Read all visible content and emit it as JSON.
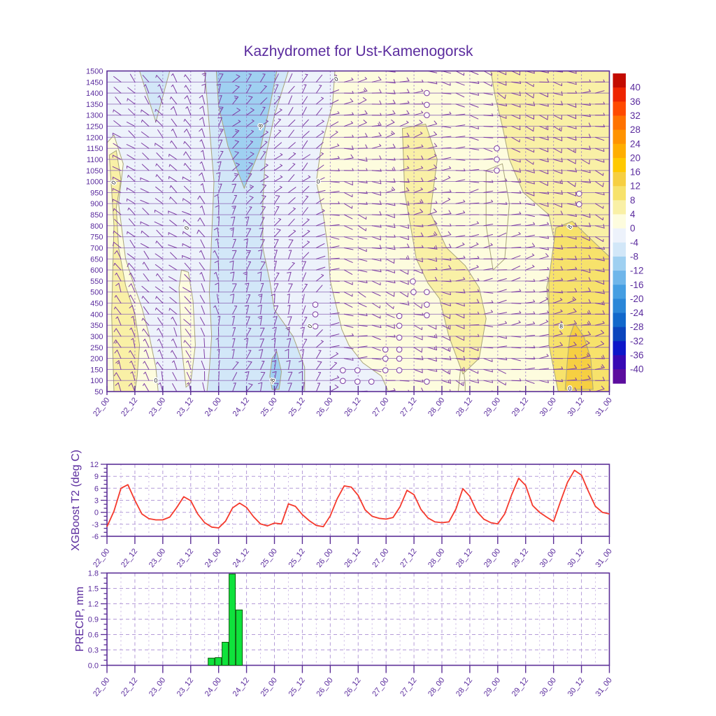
{
  "title": {
    "text": "Kazhydromet for Ust-Kamenogorsk",
    "color": "#5b2c9e"
  },
  "time_axis": {
    "labels": [
      "22_00",
      "22_12",
      "23_00",
      "23_12",
      "24_00",
      "24_12",
      "25_00",
      "25_12",
      "26_00",
      "26_12",
      "27_00",
      "27_12",
      "28_00",
      "28_12",
      "29_00",
      "29_12",
      "30_00",
      "30_12",
      "31_00"
    ],
    "start_hour": 0,
    "end_hour": 216,
    "major_step_h": 12,
    "minor_step_h": 6
  },
  "colors": {
    "frame": "#5c2f97",
    "tick_text": "#5b2c9e",
    "barb": "#7e3da5",
    "level_line": "#8a63b5",
    "grid_dash_top": "#9d7bc8",
    "grid_dash": "#b49bd8",
    "grid_dash_minor": "#cbb8e4",
    "contour_line": "#a9a57b",
    "t2_line": "#f5392d",
    "precip_bar": "#0fe23c",
    "precip_bar_edge": "#0a5c0a"
  },
  "chart_data": [
    {
      "type": "heatmap",
      "name": "wind_temperature_cross_section",
      "title": "Kazhydromet for Ust-Kamenogorsk",
      "y_axis": {
        "min": 50,
        "max": 1500,
        "step": 50
      },
      "x_ticklabels": [
        "22_00",
        "22_12",
        "23_00",
        "23_12",
        "24_00",
        "24_12",
        "25_00",
        "25_12",
        "26_00",
        "26_12",
        "27_00",
        "27_12",
        "28_00",
        "28_12",
        "29_00",
        "29_12",
        "30_00",
        "30_12",
        "31_00"
      ],
      "colorbar": {
        "tick_values": [
          40,
          36,
          32,
          28,
          24,
          20,
          16,
          12,
          8,
          4,
          0,
          -4,
          -8,
          -12,
          -16,
          -20,
          -24,
          -28,
          -32,
          -36,
          -40
        ],
        "segment_colors": [
          "#c30b00",
          "#ee2400",
          "#ff4a00",
          "#ff7200",
          "#ff9300",
          "#ffae00",
          "#ffc900",
          "#f6cf42",
          "#f7e26b",
          "#f9f0a6",
          "#fdfcde",
          "#edf2fb",
          "#d2e7f8",
          "#9fd0f1",
          "#6fb6ea",
          "#459ee2",
          "#2a86d8",
          "#1268cb",
          "#0b45bd",
          "#0d17c9",
          "#3709b4",
          "#5c0d9e"
        ]
      },
      "fills": {
        "p0_4": "#fdfcde",
        "p4_8": "#f9f0a6",
        "p8_12": "#f7e26b",
        "p12_16": "#f6cf42",
        "m4_0": "#edf2fb",
        "m8_m4": "#d2e7f8",
        "m12_m8": "#9fd0f1"
      },
      "regions": [
        {
          "fill": "m4_0",
          "pts": [
            [
              0,
              1500
            ],
            [
              98,
              1500
            ],
            [
              97,
              1350
            ],
            [
              92,
              1150
            ],
            [
              90,
              1000
            ],
            [
              93,
              850
            ],
            [
              95,
              700
            ],
            [
              96,
              550
            ],
            [
              99,
              420
            ],
            [
              101,
              330
            ],
            [
              104,
              260
            ],
            [
              110,
              180
            ],
            [
              118,
              120
            ],
            [
              121,
              50
            ],
            [
              0,
              50
            ]
          ]
        },
        {
          "fill": "p0_4",
          "pts": [
            [
              0,
              1175
            ],
            [
              3,
              1210
            ],
            [
              7,
              1080
            ],
            [
              5,
              900
            ],
            [
              8,
              650
            ],
            [
              12,
              520
            ],
            [
              15,
              430
            ],
            [
              18,
              310
            ],
            [
              21,
              160
            ],
            [
              22,
              50
            ],
            [
              0,
              50
            ]
          ]
        },
        {
          "fill": "p4_8",
          "pts": [
            [
              1,
              1120
            ],
            [
              4,
              1140
            ],
            [
              6,
              1010
            ],
            [
              4,
              880
            ],
            [
              5,
              700
            ],
            [
              8,
              530
            ],
            [
              12,
              400
            ],
            [
              14,
              260
            ],
            [
              13,
              120
            ],
            [
              12,
              50
            ],
            [
              3,
              50
            ],
            [
              2,
              400
            ],
            [
              3,
              800
            ]
          ]
        },
        {
          "fill": "p0_4",
          "pts": [
            [
              31,
              520
            ],
            [
              32,
              260
            ],
            [
              34,
              70
            ],
            [
              36,
              90
            ],
            [
              38,
              260
            ],
            [
              37,
              460
            ],
            [
              35,
              590
            ],
            [
              32,
              600
            ]
          ]
        },
        {
          "fill": "p0_4",
          "pts": [
            [
              71,
              50
            ],
            [
              72,
              170
            ],
            [
              73,
              190
            ],
            [
              74,
              120
            ],
            [
              74,
              50
            ]
          ]
        },
        {
          "fill": "p0_4",
          "pts": [
            [
              151,
              50
            ],
            [
              152,
              150
            ],
            [
              153,
              170
            ],
            [
              154,
              90
            ],
            [
              154,
              50
            ]
          ]
        },
        {
          "fill": "m8_m4",
          "pts": [
            [
              14,
              1500
            ],
            [
              27,
              1500
            ],
            [
              21,
              1270
            ]
          ]
        },
        {
          "fill": "m8_m4",
          "pts": [
            [
              42,
              1500
            ],
            [
              44,
              1250
            ],
            [
              46,
              1000
            ],
            [
              45,
              750
            ],
            [
              44,
              500
            ],
            [
              45,
              300
            ],
            [
              44,
              150
            ],
            [
              43,
              50
            ],
            [
              85,
              50
            ],
            [
              85,
              160
            ],
            [
              80,
              300
            ],
            [
              72,
              420
            ],
            [
              70,
              550
            ],
            [
              67,
              700
            ],
            [
              67,
              900
            ],
            [
              68,
              1100
            ],
            [
              72,
              1300
            ],
            [
              78,
              1500
            ]
          ]
        },
        {
          "fill": "m12_m8",
          "pts": [
            [
              47,
              1500
            ],
            [
              73,
              1500
            ],
            [
              70,
              1340
            ],
            [
              66,
              1150
            ],
            [
              59,
              970
            ],
            [
              52,
              1160
            ],
            [
              48,
              1340
            ]
          ]
        },
        {
          "fill": "m12_m8",
          "pts": [
            [
              70,
              120
            ],
            [
              71,
              200
            ],
            [
              73,
              230
            ],
            [
              75,
              140
            ],
            [
              74,
              60
            ],
            [
              71,
              60
            ]
          ]
        },
        {
          "fill": "p4_8",
          "pts": [
            [
              127,
              1240
            ],
            [
              137,
              1260
            ],
            [
              142,
              1100
            ],
            [
              139,
              860
            ],
            [
              146,
              700
            ],
            [
              154,
              620
            ],
            [
              160,
              520
            ],
            [
              163,
              380
            ],
            [
              160,
              200
            ],
            [
              153,
              130
            ],
            [
              147,
              300
            ],
            [
              143,
              470
            ],
            [
              138,
              540
            ],
            [
              133,
              650
            ],
            [
              128,
              950
            ]
          ]
        },
        {
          "fill": "p4_8",
          "pts": [
            [
              165,
              1500
            ],
            [
              216,
              1500
            ],
            [
              216,
              50
            ],
            [
              199,
              50
            ],
            [
              197,
              160
            ],
            [
              191,
              340
            ],
            [
              189,
              520
            ],
            [
              193,
              700
            ],
            [
              190,
              850
            ],
            [
              179,
              950
            ],
            [
              173,
              1100
            ],
            [
              170,
              1250
            ],
            [
              167,
              1380
            ]
          ]
        },
        {
          "fill": "p0_4",
          "pts": [
            [
              163,
              1050
            ],
            [
              170,
              1080
            ],
            [
              173,
              900
            ],
            [
              171,
              650
            ],
            [
              166,
              600
            ],
            [
              163,
              800
            ]
          ]
        },
        {
          "fill": "p8_12",
          "pts": [
            [
              193,
              790
            ],
            [
              200,
              820
            ],
            [
              208,
              740
            ],
            [
              216,
              660
            ],
            [
              216,
              50
            ],
            [
              194,
              50
            ],
            [
              190,
              260
            ],
            [
              190,
              560
            ]
          ]
        },
        {
          "fill": "p12_16",
          "pts": [
            [
              201,
              360
            ],
            [
              205,
              300
            ],
            [
              208,
              200
            ],
            [
              209,
              60
            ],
            [
              197,
              60
            ],
            [
              198,
              200
            ],
            [
              199,
              300
            ]
          ]
        }
      ],
      "contour_labels": [
        {
          "text": "0",
          "t": 3.6,
          "level": 1000,
          "rot": -60
        },
        {
          "text": "0",
          "t": 35,
          "level": 795,
          "rot": -60
        },
        {
          "text": "-8",
          "t": 66.8,
          "level": 1255,
          "rot": -75
        },
        {
          "text": "0",
          "t": 99,
          "level": 1465,
          "rot": -30
        },
        {
          "text": "0",
          "t": 90.8,
          "level": 1000,
          "rot": 0
        },
        {
          "text": "0",
          "t": 88,
          "level": 350,
          "rot": -60
        },
        {
          "text": "0",
          "t": 21,
          "level": 100,
          "rot": 0
        },
        {
          "text": "-8",
          "t": 72,
          "level": 105,
          "rot": -80
        },
        {
          "text": "8",
          "t": 195.3,
          "level": 345,
          "rot": 0
        },
        {
          "text": "8",
          "t": 199.7,
          "level": 800,
          "rot": -60
        },
        {
          "text": "0",
          "t": 199,
          "level": 65,
          "rot": 0
        }
      ],
      "calm_circles": [
        [
          137.5,
          1400
        ],
        [
          137.5,
          1347
        ],
        [
          137.5,
          1300
        ],
        [
          167.6,
          1150
        ],
        [
          167.6,
          1100
        ],
        [
          167.6,
          1050
        ],
        [
          203,
          945
        ],
        [
          203,
          897
        ],
        [
          131.5,
          548
        ],
        [
          131.8,
          500
        ],
        [
          137.5,
          500
        ],
        [
          137.5,
          443
        ],
        [
          125.7,
          392
        ],
        [
          137.5,
          395
        ],
        [
          125.7,
          348
        ],
        [
          125.7,
          294
        ],
        [
          119.7,
          240
        ],
        [
          125.7,
          240
        ],
        [
          119.7,
          199
        ],
        [
          125.7,
          199
        ],
        [
          107.7,
          146
        ],
        [
          119.7,
          146
        ],
        [
          125.7,
          146
        ],
        [
          107.7,
          95
        ],
        [
          113.7,
          95
        ],
        [
          137.5,
          95
        ],
        [
          89.6,
          443
        ],
        [
          89.6,
          399
        ],
        [
          89.6,
          345
        ],
        [
          101.4,
          146
        ],
        [
          101.4,
          98
        ]
      ],
      "wind_barbs": {
        "dt_hours": 6,
        "level_min": 50,
        "level_max": 1500,
        "dl": 50,
        "seed": 7
      }
    },
    {
      "type": "line",
      "name": "xgboost_t2",
      "ylabel": "XGBoost T2 (deg C)",
      "ylim": [
        -6,
        12
      ],
      "ytick_step": 3,
      "x_start_hour": 0,
      "x_step_hours": 3,
      "values": [
        -3.6,
        0.3,
        6.0,
        6.9,
        3.0,
        -0.4,
        -1.6,
        -1.9,
        -1.9,
        -1.2,
        1.2,
        3.9,
        2.9,
        -0.4,
        -2.6,
        -3.7,
        -3.9,
        -2.2,
        1.1,
        2.3,
        1.2,
        -1.1,
        -2.9,
        -3.4,
        -2.7,
        -2.9,
        2.1,
        1.5,
        -0.6,
        -2.1,
        -3.3,
        -3.6,
        -0.9,
        3.4,
        6.6,
        6.3,
        4.2,
        0.6,
        -1.0,
        -1.5,
        -1.7,
        -1.3,
        1.4,
        5.5,
        4.4,
        0.7,
        -1.4,
        -2.4,
        -2.6,
        -2.4,
        0.8,
        5.9,
        4.0,
        0.2,
        -1.7,
        -2.6,
        -2.9,
        -0.4,
        4.4,
        8.5,
        6.7,
        1.7,
        0.0,
        -1.2,
        -2.3,
        2.7,
        7.5,
        10.5,
        9.3,
        5.2,
        1.5,
        0.0,
        -0.4
      ]
    },
    {
      "type": "bar",
      "name": "precip",
      "ylabel": "PRECIP, mm",
      "ylim": [
        0,
        1.8
      ],
      "ytick_step": 0.3,
      "bars": [
        {
          "hour": 45,
          "value": 0.14
        },
        {
          "hour": 48,
          "value": 0.15
        },
        {
          "hour": 51,
          "value": 0.45
        },
        {
          "hour": 54,
          "value": 1.78
        },
        {
          "hour": 57,
          "value": 1.08
        }
      ]
    }
  ]
}
